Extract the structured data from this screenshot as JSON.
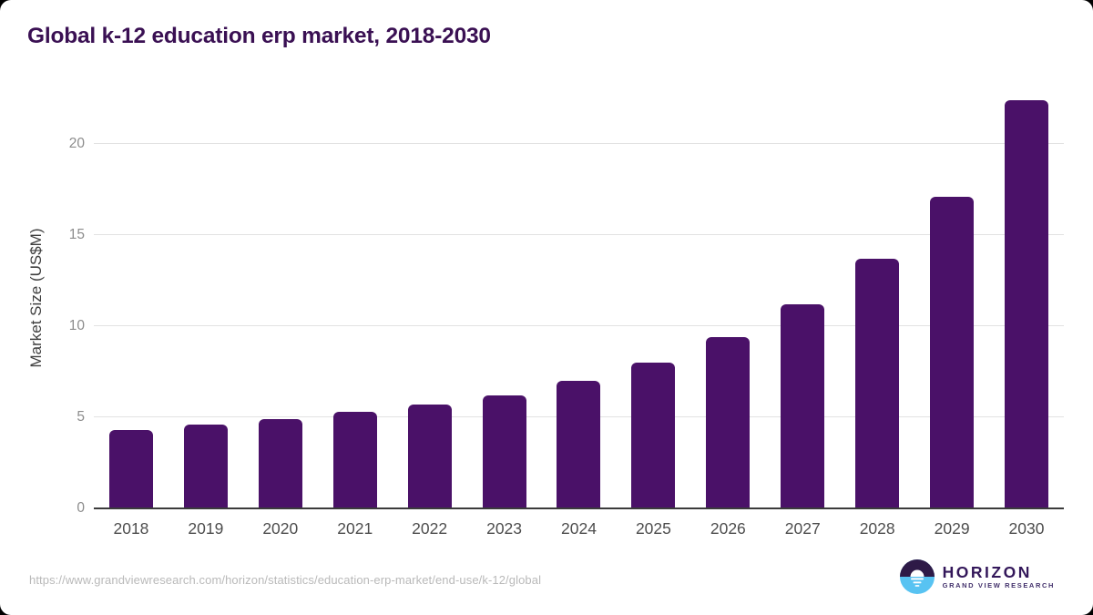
{
  "header": {
    "title": "Global k-12 education erp market, 2018-2030"
  },
  "chart_data": {
    "type": "bar",
    "title": "Global k-12 education erp market, 2018-2030",
    "categories": [
      "2018",
      "2019",
      "2020",
      "2021",
      "2022",
      "2023",
      "2024",
      "2025",
      "2026",
      "2027",
      "2028",
      "2029",
      "2030"
    ],
    "values": [
      4.3,
      4.6,
      4.9,
      5.3,
      5.7,
      6.2,
      7.0,
      8.0,
      9.4,
      11.2,
      13.7,
      17.1,
      22.4
    ],
    "xlabel": "",
    "ylabel": "Market Size (US$M)",
    "yticks": [
      0,
      5,
      10,
      15,
      20
    ],
    "ylim": [
      0,
      23.15
    ],
    "grid": true,
    "legend": false
  },
  "footer": {
    "source_url": "https://www.grandviewresearch.com/horizon/statistics/education-erp-market/end-use/k-12/global",
    "logo": {
      "name": "HORIZON",
      "subtitle": "GRAND VIEW RESEARCH"
    }
  },
  "colors": {
    "bar": "#4a1168",
    "title": "#3a1053",
    "gridline": "#e2e2e2",
    "axis_line": "#3b3b3b",
    "ytick_label": "#8c8c8c",
    "xtick_label": "#4d4d4d",
    "logo_purple": "#2e1a47",
    "logo_blue": "#58c3f2"
  }
}
